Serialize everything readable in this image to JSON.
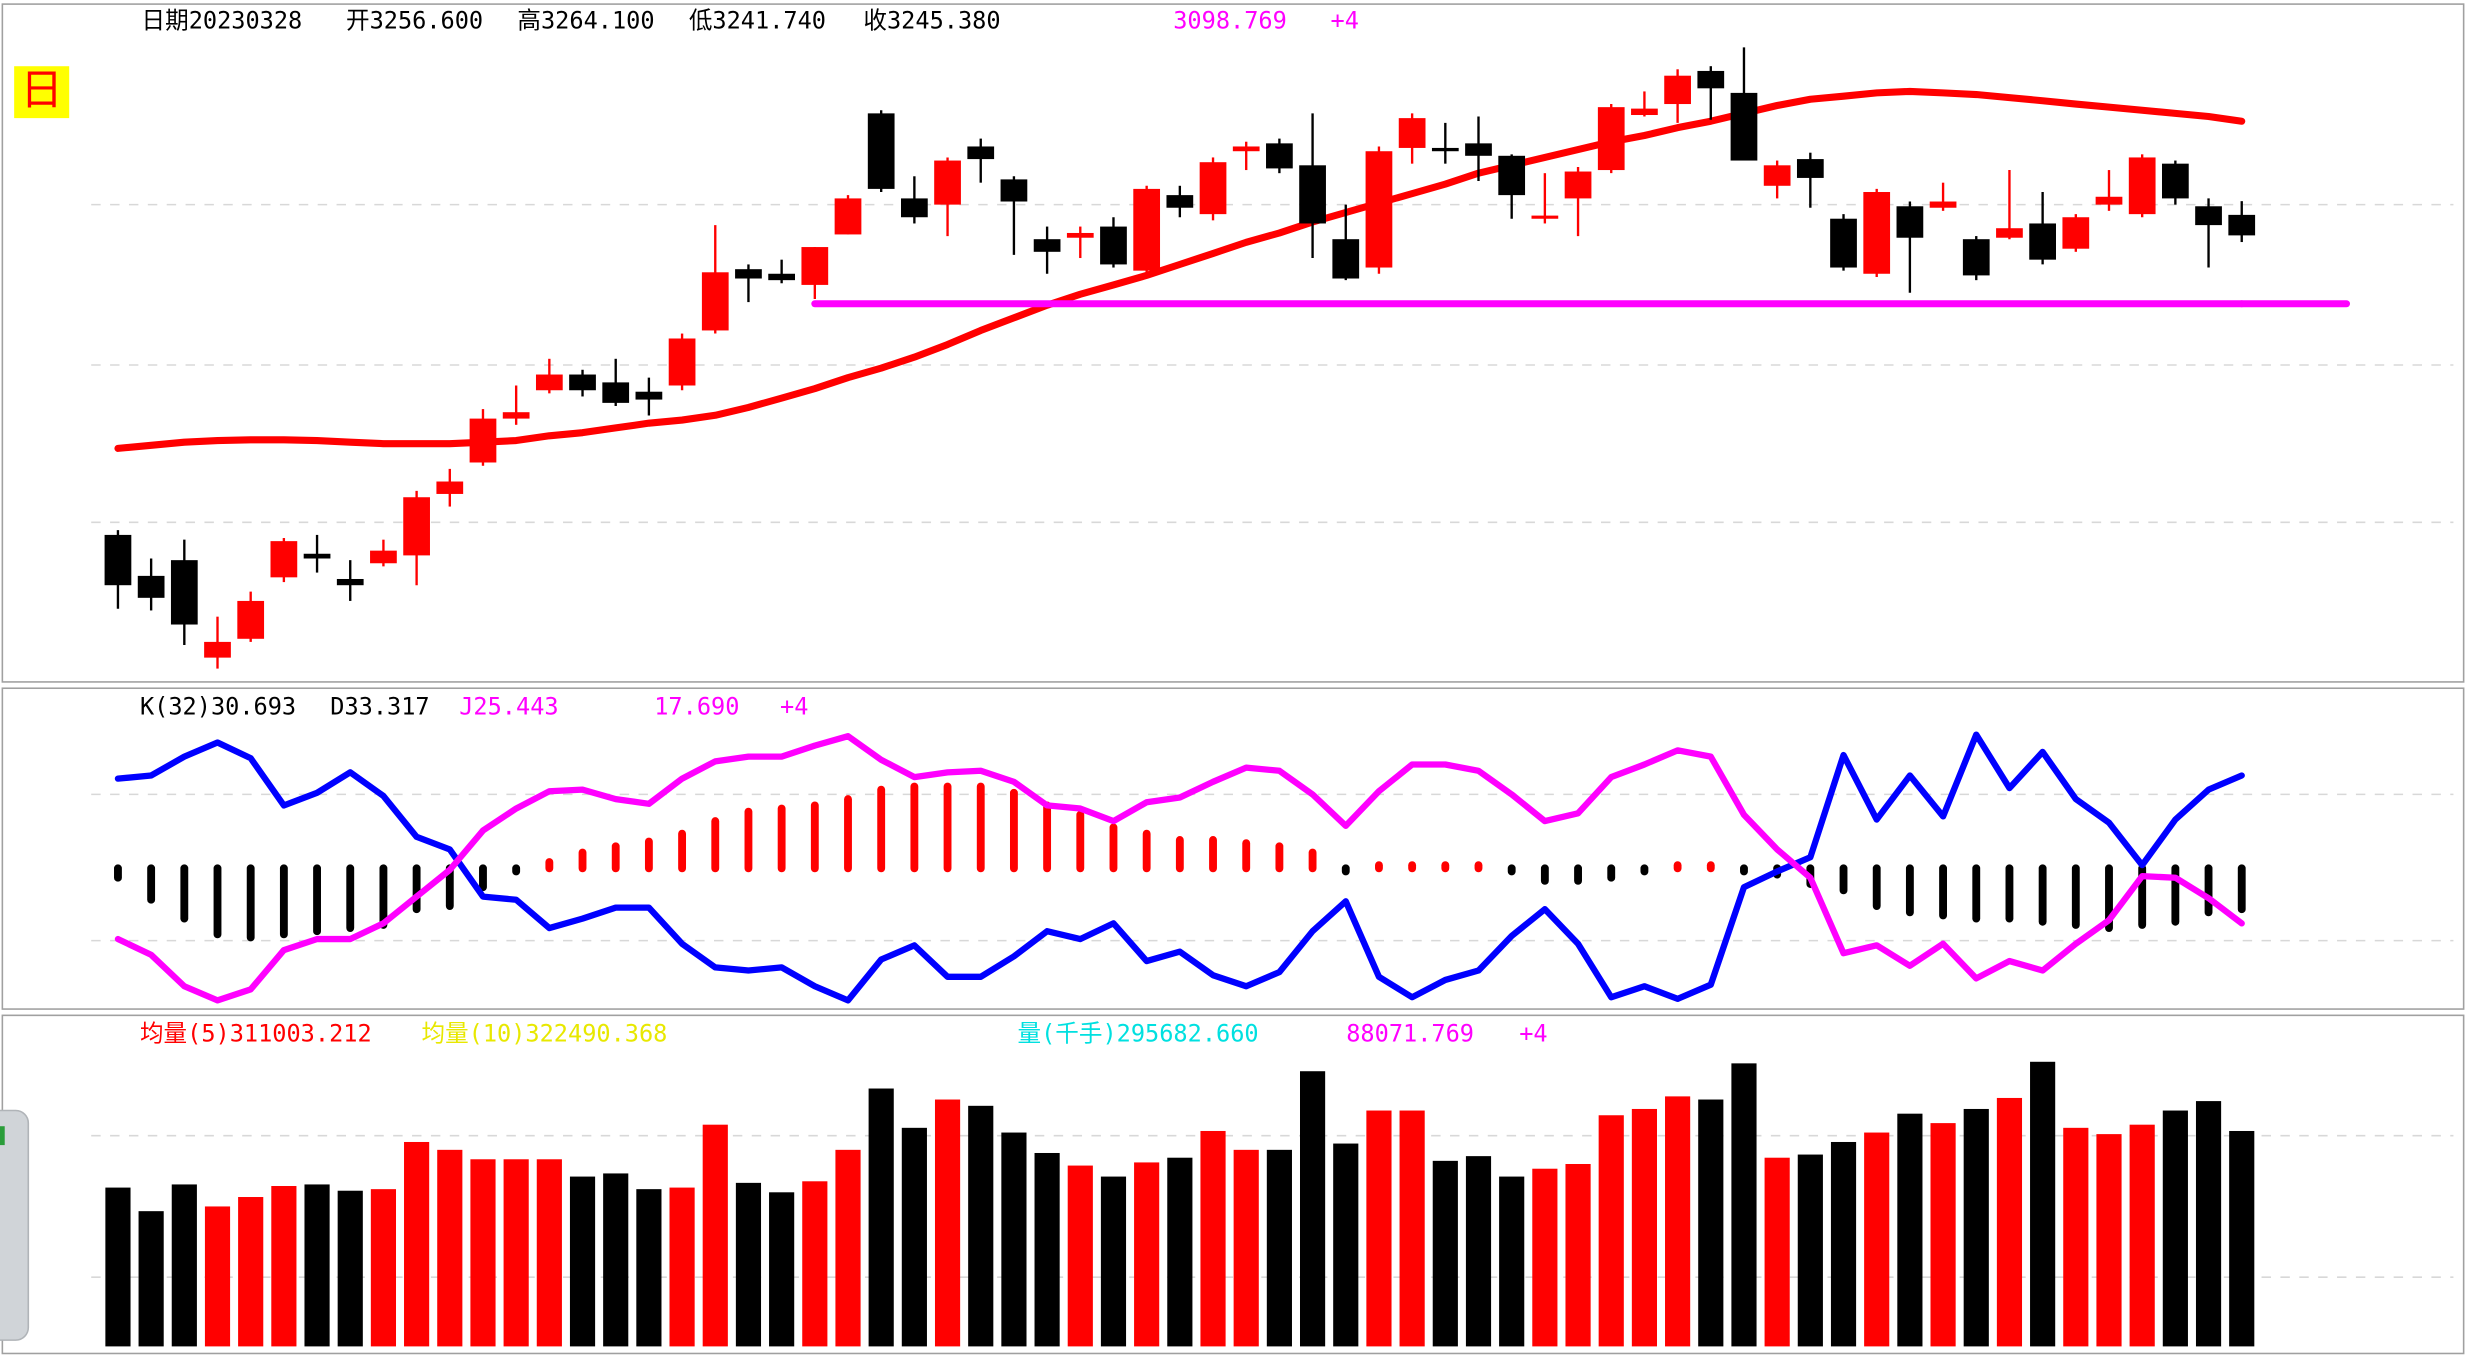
{
  "chart_data": [
    {
      "type": "candlestick",
      "label": "日",
      "header": [
        {
          "text": "日期20230328",
          "color": "#000000"
        },
        {
          "text": "开3256.600",
          "color": "#000000"
        },
        {
          "text": "高3264.100",
          "color": "#000000"
        },
        {
          "text": "低3241.740",
          "color": "#000000"
        },
        {
          "text": "收3245.380",
          "color": "#000000"
        },
        {
          "text": "3098.769",
          "color": "#ff00ff"
        },
        {
          "text": "+4",
          "color": "#ff00ff"
        }
      ],
      "up_color": "#ff0000",
      "down_color": "#000000",
      "ylim": [
        3002.5,
        3369.7
      ],
      "gridlines": [
        3088.5,
        3174.5,
        3262.2
      ],
      "open": [
        3081.6,
        3059.2,
        3067.8,
        3014.5,
        3024.8,
        3058.4,
        3071.3,
        3057.5,
        3066.1,
        3070.4,
        3104.0,
        3121.2,
        3145.2,
        3160.7,
        3169.3,
        3165.0,
        3159.9,
        3163.3,
        3193.4,
        3226.9,
        3224.4,
        3218.3,
        3245.9,
        3312.1,
        3265.6,
        3262.2,
        3294.0,
        3276.0,
        3243.3,
        3244.1,
        3250.2,
        3226.1,
        3267.4,
        3257.0,
        3291.4,
        3295.7,
        3283.7,
        3243.3,
        3227.8,
        3293.2,
        3293.2,
        3295.7,
        3288.9,
        3255.3,
        3265.6,
        3281.1,
        3311.2,
        3317.2,
        3335.3,
        3323.3,
        3272.5,
        3287.1,
        3254.5,
        3224.4,
        3261.3,
        3260.5,
        3243.3,
        3244.1,
        3251.9,
        3238.1,
        3262.2,
        3257.0,
        3284.6,
        3261.3,
        3256.6
      ],
      "high": [
        3084.2,
        3068.7,
        3079.0,
        3036.9,
        3050.6,
        3079.9,
        3081.6,
        3067.8,
        3079.0,
        3105.7,
        3117.7,
        3150.4,
        3163.3,
        3177.9,
        3171.9,
        3177.9,
        3167.6,
        3191.7,
        3251.0,
        3229.5,
        3232.1,
        3239.0,
        3267.4,
        3313.8,
        3277.7,
        3288.0,
        3298.3,
        3277.7,
        3250.2,
        3250.2,
        3255.3,
        3272.5,
        3272.5,
        3288.0,
        3296.6,
        3298.3,
        3312.1,
        3262.2,
        3294.0,
        3312.1,
        3306.9,
        3310.4,
        3289.7,
        3279.4,
        3282.8,
        3317.2,
        3324.1,
        3336.2,
        3337.9,
        3348.2,
        3286.3,
        3290.6,
        3257.0,
        3270.8,
        3263.9,
        3274.2,
        3245.0,
        3281.1,
        3269.1,
        3257.0,
        3281.1,
        3289.7,
        3286.3,
        3265.6,
        3264.1
      ],
      "low": [
        3041.2,
        3040.3,
        3021.4,
        3008.5,
        3023.1,
        3055.8,
        3061.0,
        3045.5,
        3064.4,
        3054.1,
        3097.1,
        3119.4,
        3141.8,
        3159.0,
        3157.3,
        3152.1,
        3146.9,
        3160.7,
        3191.7,
        3208.9,
        3219.2,
        3210.6,
        3245.9,
        3269.1,
        3251.9,
        3245.0,
        3274.2,
        3234.7,
        3224.4,
        3233.0,
        3227.8,
        3222.6,
        3255.3,
        3253.6,
        3281.1,
        3279.4,
        3233.0,
        3220.9,
        3224.4,
        3284.6,
        3284.6,
        3275.1,
        3254.5,
        3251.9,
        3245.0,
        3279.4,
        3310.4,
        3306.9,
        3308.6,
        3286.3,
        3265.6,
        3260.5,
        3226.1,
        3222.6,
        3214.0,
        3258.8,
        3220.9,
        3243.3,
        3229.5,
        3236.4,
        3258.8,
        3255.3,
        3262.2,
        3227.8,
        3241.74
      ],
      "close": [
        3054.1,
        3047.2,
        3032.6,
        3023.1,
        3045.5,
        3078.2,
        3068.7,
        3054.1,
        3073.0,
        3102.2,
        3110.8,
        3145.2,
        3148.7,
        3169.3,
        3160.7,
        3153.8,
        3155.6,
        3189.0,
        3225.2,
        3221.8,
        3220.9,
        3239.0,
        3265.6,
        3270.8,
        3255.3,
        3286.3,
        3287.1,
        3263.9,
        3236.4,
        3246.7,
        3229.5,
        3270.8,
        3260.5,
        3285.4,
        3294.0,
        3282.0,
        3251.9,
        3221.8,
        3291.4,
        3309.5,
        3291.4,
        3288.9,
        3267.4,
        3256.2,
        3280.3,
        3315.5,
        3314.7,
        3332.7,
        3325.8,
        3286.3,
        3283.7,
        3276.8,
        3227.8,
        3269.1,
        3244.1,
        3263.9,
        3223.5,
        3249.3,
        3232.1,
        3255.3,
        3266.5,
        3288.0,
        3265.6,
        3251.0,
        3245.38
      ],
      "ma": {
        "color": "#ff0000",
        "values": [
          3128.9,
          3130.6,
          3132.3,
          3133.2,
          3133.6,
          3133.6,
          3133.2,
          3132.3,
          3131.5,
          3131.5,
          3131.5,
          3132.3,
          3133.2,
          3135.8,
          3137.5,
          3140.1,
          3142.7,
          3144.4,
          3147.0,
          3151.3,
          3156.4,
          3161.6,
          3167.6,
          3172.8,
          3178.8,
          3185.7,
          3193.4,
          3200.3,
          3207.2,
          3213.2,
          3218.3,
          3223.5,
          3229.5,
          3235.5,
          3241.6,
          3246.7,
          3252.7,
          3257.9,
          3263.1,
          3268.2,
          3273.4,
          3279.4,
          3283.7,
          3288.0,
          3292.3,
          3296.6,
          3300.0,
          3304.3,
          3307.8,
          3312.1,
          3316.4,
          3319.8,
          3321.5,
          3323.3,
          3324.1,
          3323.3,
          3322.4,
          3320.7,
          3319.0,
          3317.2,
          3315.5,
          3313.8,
          3312.1,
          3310.4,
          3307.8
        ]
      },
      "support": {
        "color": "#ff00ff",
        "values": [
          null,
          null,
          null,
          null,
          null,
          null,
          null,
          null,
          null,
          null,
          null,
          null,
          null,
          null,
          null,
          null,
          null,
          null,
          null,
          null,
          null,
          3208,
          3208,
          3208,
          3208,
          3208,
          3208,
          3208,
          3208,
          3208,
          3208,
          3208,
          3208,
          3208,
          3208,
          3208,
          3208,
          3208,
          3208,
          3208,
          3208,
          3208,
          3208,
          3208,
          3208,
          3208,
          3208,
          3208,
          3208,
          3208,
          3208,
          3208,
          3208,
          3208,
          3208,
          3208,
          3208,
          3208,
          3208,
          3208,
          3208,
          3208,
          3208,
          3208,
          3208
        ]
      }
    },
    {
      "type": "indicator",
      "header": [
        {
          "text": "K(32)30.693",
          "color": "#000000"
        },
        {
          "text": "D33.317",
          "color": "#000000"
        },
        {
          "text": "J25.443",
          "color": "#ff00ff"
        },
        {
          "text": "17.690",
          "color": "#ff00ff"
        },
        {
          "text": "+4",
          "color": "#ff00ff"
        }
      ],
      "ylim": [
        -90,
        110
      ],
      "gridlines": [
        47,
        -46
      ],
      "series": [
        {
          "color": "#0000ff",
          "values": [
            57,
            59,
            71,
            80,
            70,
            40,
            48,
            61,
            46,
            20,
            12,
            -18,
            -20,
            -38,
            -32,
            -25,
            -25,
            -48,
            -63,
            -65,
            -63,
            -75,
            -84,
            -58,
            -49,
            -69,
            -69,
            -56,
            -40,
            -45,
            -35,
            -59,
            -53,
            -68,
            -75,
            -66,
            -40,
            -21,
            -69,
            -82,
            -71,
            -65,
            -43,
            -26,
            -48,
            -82,
            -75,
            -83,
            -74,
            -12,
            -2,
            7,
            72,
            31,
            59,
            33,
            85,
            51,
            74,
            44,
            29,
            2,
            31,
            50,
            59
          ]
        },
        {
          "color": "#ff00ff",
          "values": [
            -45,
            -55,
            -75,
            -84,
            -77,
            -52,
            -45,
            -45,
            -35,
            -18,
            -1,
            24,
            38,
            49,
            50,
            44,
            41,
            57,
            68,
            71,
            71,
            78,
            84,
            69,
            58,
            61,
            62,
            55,
            40,
            38,
            30,
            42,
            45,
            55,
            64,
            62,
            47,
            27,
            49,
            66,
            66,
            62,
            47,
            30,
            35,
            58,
            66,
            75,
            71,
            34,
            12,
            -6,
            -54,
            -49,
            -62,
            -48,
            -70,
            -59,
            -65,
            -48,
            -33,
            -5,
            -6,
            -19,
            -35
          ]
        }
      ],
      "bars": {
        "up_color": "#ff0000",
        "down_color": "#000000",
        "values": [
          -6,
          -20,
          -32,
          -42,
          -44,
          -42,
          -40,
          -38,
          -36,
          -26,
          -24,
          -12,
          -2,
          4,
          10,
          14,
          17,
          22,
          30,
          36,
          38,
          40,
          44,
          50,
          52,
          52,
          52,
          48,
          40,
          34,
          26,
          22,
          18,
          18,
          16,
          14,
          10,
          -2,
          2,
          2,
          2,
          2,
          -2,
          -8,
          -8,
          -6,
          -2,
          2,
          2,
          -2,
          -4,
          -10,
          -14,
          -24,
          -28,
          -30,
          -32,
          -32,
          -34,
          -36,
          -38,
          -36,
          -34,
          -28,
          -26
        ]
      }
    },
    {
      "type": "bar",
      "header": [
        {
          "text": "均量(5)311003.212",
          "color": "#ff0000"
        },
        {
          "text": "均量(10)322490.368",
          "color": "#e8e800"
        },
        {
          "text": "量(千手)295682.660",
          "color": "#00e0e0"
        },
        {
          "text": "88071.769",
          "color": "#ff00ff"
        },
        {
          "text": "+4",
          "color": "#ff00ff"
        }
      ],
      "ylim": [
        0,
        449000
      ],
      "gridlines": [
        289212,
        94965
      ],
      "values": [
        217988,
        185614,
        222305,
        192089,
        205039,
        220147,
        222305,
        213672,
        215830,
        280579,
        269788,
        256838,
        256838,
        256838,
        233096,
        237413,
        215830,
        217988,
        304320,
        224463,
        211513,
        226622,
        269788,
        353961,
        300004,
        338853,
        330220,
        293529,
        265471,
        248205,
        233096,
        252521,
        258996,
        295687,
        269788,
        269788,
        377703,
        278421,
        323745,
        323745,
        254679,
        261154,
        233096,
        243888,
        250363,
        317270,
        325903,
        343170,
        338853,
        388494,
        258996,
        263313,
        280579,
        293529,
        319428,
        306479,
        325903,
        341011,
        390652,
        300004,
        291371,
        304320,
        323745,
        336695,
        295682.66
      ]
    }
  ]
}
